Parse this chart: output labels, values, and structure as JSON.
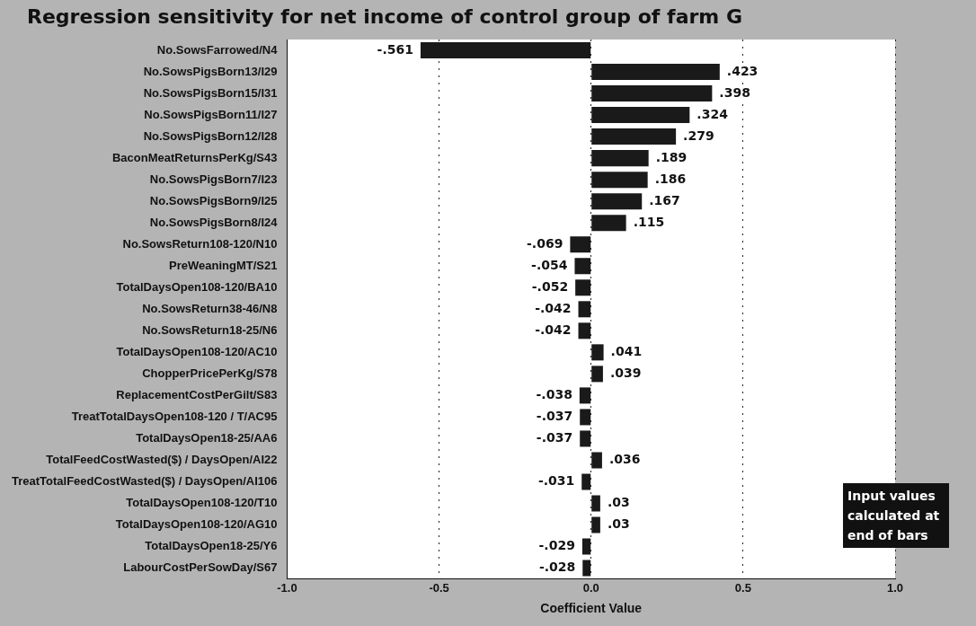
{
  "chart_data": {
    "type": "bar",
    "orientation": "horizontal",
    "title": "Regression sensitivity for net income of control group of farm G",
    "xlabel": "Coefficient Value",
    "categories": [
      "No.SowsFarrowed/N4",
      "No.SowsPigsBorn13/I29",
      "No.SowsPigsBorn15/I31",
      "No.SowsPigsBorn11/I27",
      "No.SowsPigsBorn12/I28",
      "BaconMeatReturnsPerKg/S43",
      "No.SowsPigsBorn7/I23",
      "No.SowsPigsBorn9/I25",
      "No.SowsPigsBorn8/I24",
      "No.SowsReturn108-120/N10",
      "PreWeaningMT/S21",
      "TotalDaysOpen108-120/BA10",
      "No.SowsReturn38-46/N8",
      "No.SowsReturn18-25/N6",
      "TotalDaysOpen108-120/AC10",
      "ChopperPricePerKg/S78",
      "ReplacementCostPerGilt/S83",
      "TreatTotalDaysOpen108-120 / T/AC95",
      "TotalDaysOpen18-25/AA6",
      "TotalFeedCostWasted($) / DaysOpen/AI22",
      "TreatTotalFeedCostWasted($) / DaysOpen/AI106",
      "TotalDaysOpen108-120/T10",
      "TotalDaysOpen108-120/AG10",
      "TotalDaysOpen18-25/Y6",
      "LabourCostPerSowDay/S67"
    ],
    "values": [
      -0.561,
      0.423,
      0.398,
      0.324,
      0.279,
      0.189,
      0.186,
      0.167,
      0.115,
      -0.069,
      -0.054,
      -0.052,
      -0.042,
      -0.042,
      0.041,
      0.039,
      -0.038,
      -0.037,
      -0.037,
      0.036,
      -0.031,
      0.03,
      0.03,
      -0.029,
      -0.028
    ],
    "value_labels": [
      "-.561",
      ".423",
      ".398",
      ".324",
      ".279",
      ".189",
      ".186",
      ".167",
      ".115",
      "-.069",
      "-.054",
      "-.052",
      "-.042",
      "-.042",
      ".041",
      ".039",
      "-.038",
      "-.037",
      "-.037",
      ".036",
      "-.031",
      ".03",
      ".03",
      "-.029",
      "-.028"
    ],
    "color": "#1a1a1a",
    "xlim": [
      -1,
      1
    ],
    "xticks": [
      {
        "value": -1,
        "label": "-1.0"
      },
      {
        "value": -0.5,
        "label": "-0.5"
      },
      {
        "value": 0,
        "label": "0.0"
      },
      {
        "value": 0.5,
        "label": "0.5"
      },
      {
        "value": 1,
        "label": "1.0"
      }
    ],
    "grid": "x",
    "legend": false,
    "annotations": [
      "Input values calculated at end of bars"
    ]
  }
}
